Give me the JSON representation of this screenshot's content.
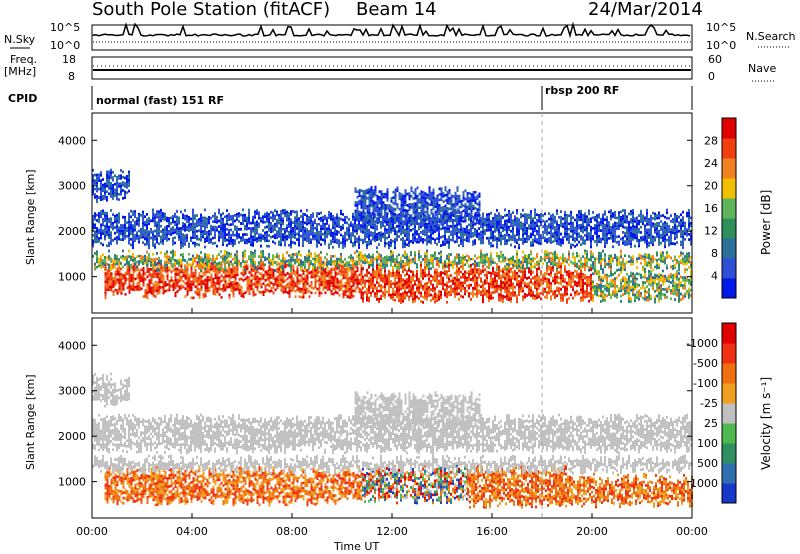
{
  "header": {
    "station": "South Pole Station (fitACF)",
    "beam": "Beam 14",
    "date": "24/Mar/2014"
  },
  "aux_panels": {
    "nsky_label": "N.Sky",
    "nsky_ticks": [
      "10^5",
      "10^0"
    ],
    "nsearch_label": "N.Search",
    "nsearch_ticks": [
      "10^5",
      "10^0"
    ],
    "freq_label": "Freq.",
    "freq_unit": "[MHz]",
    "freq_ticks": [
      "18",
      "8"
    ],
    "nave_label": "Nave",
    "nave_ticks": [
      "60",
      "0"
    ],
    "cpid_label": "CPID",
    "cpid_segments": [
      {
        "label": "normal (fast) 151 RF",
        "start_hour": 0
      },
      {
        "label": "rbsp 200 RF",
        "start_hour": 18
      }
    ]
  },
  "chart_data": [
    {
      "type": "heatmap",
      "name": "power",
      "ylabel": "Slant Range [km]",
      "yticks": [
        1000,
        2000,
        3000,
        4000
      ],
      "ylim": [
        200,
        4600
      ],
      "colorbar_label": "Power [dB]",
      "colorbar_ticks": [
        "4",
        "8",
        "12",
        "16",
        "20",
        "24",
        "28"
      ],
      "colorbar_colors": [
        "#0018e8",
        "#2f4fd6",
        "#2b6f9b",
        "#2f8f5a",
        "#5fb35a",
        "#f0c000",
        "#f08020",
        "#f04010",
        "#e00000"
      ],
      "bands": [
        {
          "start": 0.5,
          "end": 10.8,
          "lo": 600,
          "hi": 1250,
          "level": "high"
        },
        {
          "start": 0.0,
          "end": 24.0,
          "lo": 1200,
          "hi": 1500,
          "level": "mid"
        },
        {
          "start": 10.8,
          "end": 20.0,
          "lo": 500,
          "hi": 1200,
          "level": "high"
        },
        {
          "start": 20.0,
          "end": 24.0,
          "lo": 500,
          "hi": 1100,
          "level": "mid"
        },
        {
          "start": 0.0,
          "end": 24.0,
          "lo": 1700,
          "hi": 2400,
          "level": "low"
        },
        {
          "start": 10.5,
          "end": 15.5,
          "lo": 2200,
          "hi": 2900,
          "level": "low"
        },
        {
          "start": 0.0,
          "end": 1.5,
          "lo": 2700,
          "hi": 3300,
          "level": "low"
        }
      ]
    },
    {
      "type": "heatmap",
      "name": "velocity",
      "ylabel": "Slant Range [km]",
      "yticks": [
        1000,
        2000,
        3000,
        4000
      ],
      "ylim": [
        200,
        4600
      ],
      "xlabel": "Time UT",
      "xticks": [
        "00:00",
        "04:00",
        "08:00",
        "12:00",
        "16:00",
        "20:00",
        "00:00"
      ],
      "xlim": [
        0,
        24
      ],
      "colorbar_label": "Velocity [m s⁻¹]",
      "colorbar_ticks": [
        "1000",
        "500",
        "100",
        "25",
        "-25",
        "-100",
        "-500",
        "-1000"
      ],
      "colorbar_colors": [
        "#1838c8",
        "#2f6fb0",
        "#2f8f60",
        "#4fb84f",
        "#c0c0c0",
        "#f0a020",
        "#f07010",
        "#f03010",
        "#e00000"
      ],
      "bands": [
        {
          "start": 0.5,
          "end": 10.8,
          "lo": 550,
          "hi": 1250,
          "level": "neg"
        },
        {
          "start": 10.8,
          "end": 15.0,
          "lo": 600,
          "hi": 1300,
          "level": "mixed"
        },
        {
          "start": 15.0,
          "end": 19.0,
          "lo": 500,
          "hi": 1300,
          "level": "neg"
        },
        {
          "start": 19.0,
          "end": 24.0,
          "lo": 500,
          "hi": 1100,
          "level": "neg"
        },
        {
          "start": 0.0,
          "end": 24.0,
          "lo": 1250,
          "hi": 1500,
          "level": "gray"
        },
        {
          "start": 0.0,
          "end": 24.0,
          "lo": 1700,
          "hi": 2400,
          "level": "gray"
        },
        {
          "start": 10.5,
          "end": 15.5,
          "lo": 2200,
          "hi": 2900,
          "level": "gray"
        },
        {
          "start": 0.0,
          "end": 1.5,
          "lo": 2700,
          "hi": 3300,
          "level": "gray"
        }
      ]
    }
  ]
}
